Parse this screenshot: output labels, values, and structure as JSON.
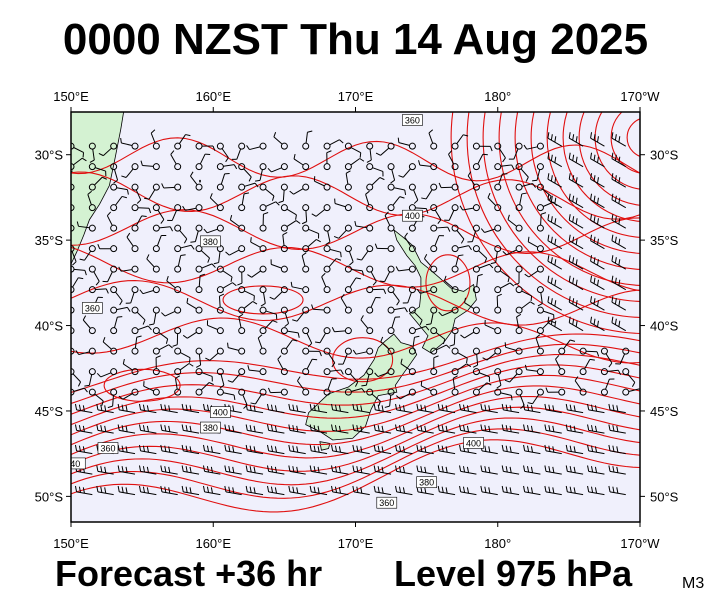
{
  "title": "0000 NZST Thu 14 Aug 2025",
  "footer": {
    "forecast": "Forecast +36 hr",
    "level": "Level 975 hPa",
    "model_code": "M3"
  },
  "map": {
    "projection": "lat-lon",
    "lon_range": [
      150,
      190
    ],
    "lat_range": [
      -51.5,
      -27.5
    ],
    "lon_ticks": [
      {
        "lon": 150,
        "label": "150°E"
      },
      {
        "lon": 160,
        "label": "160°E"
      },
      {
        "lon": 170,
        "label": "170°E"
      },
      {
        "lon": 180,
        "label": "180°"
      },
      {
        "lon": 190,
        "label": "170°W"
      }
    ],
    "lat_ticks": [
      {
        "lat": -30,
        "label": "30°S"
      },
      {
        "lat": -35,
        "label": "35°S"
      },
      {
        "lat": -40,
        "label": "40°S"
      },
      {
        "lat": -45,
        "label": "45°S"
      },
      {
        "lat": -50,
        "label": "50°S"
      }
    ],
    "colors": {
      "ocean": "#f0f0fc",
      "land": "#d4f2d2",
      "contour": "#e01010",
      "coast": "#000000",
      "barb": "#000000"
    },
    "contour_labels": [
      {
        "text": "360",
        "lon": 174.0,
        "lat": -28.0
      },
      {
        "text": "400",
        "lon": 174.0,
        "lat": -33.6
      },
      {
        "text": "380",
        "lon": 159.8,
        "lat": -46.0
      },
      {
        "text": "400",
        "lon": 160.5,
        "lat": -45.1
      },
      {
        "text": "360",
        "lon": 152.6,
        "lat": -47.2
      },
      {
        "text": "380",
        "lon": 175.0,
        "lat": -49.2
      },
      {
        "text": "360",
        "lon": 172.2,
        "lat": -50.4
      },
      {
        "text": "400",
        "lon": 178.3,
        "lat": -46.9
      },
      {
        "text": "380",
        "lon": 159.8,
        "lat": -35.1
      },
      {
        "text": "360",
        "lon": 151.5,
        "lat": -39.0
      },
      {
        "text": "40",
        "lon": 150.3,
        "lat": -48.1
      }
    ]
  }
}
